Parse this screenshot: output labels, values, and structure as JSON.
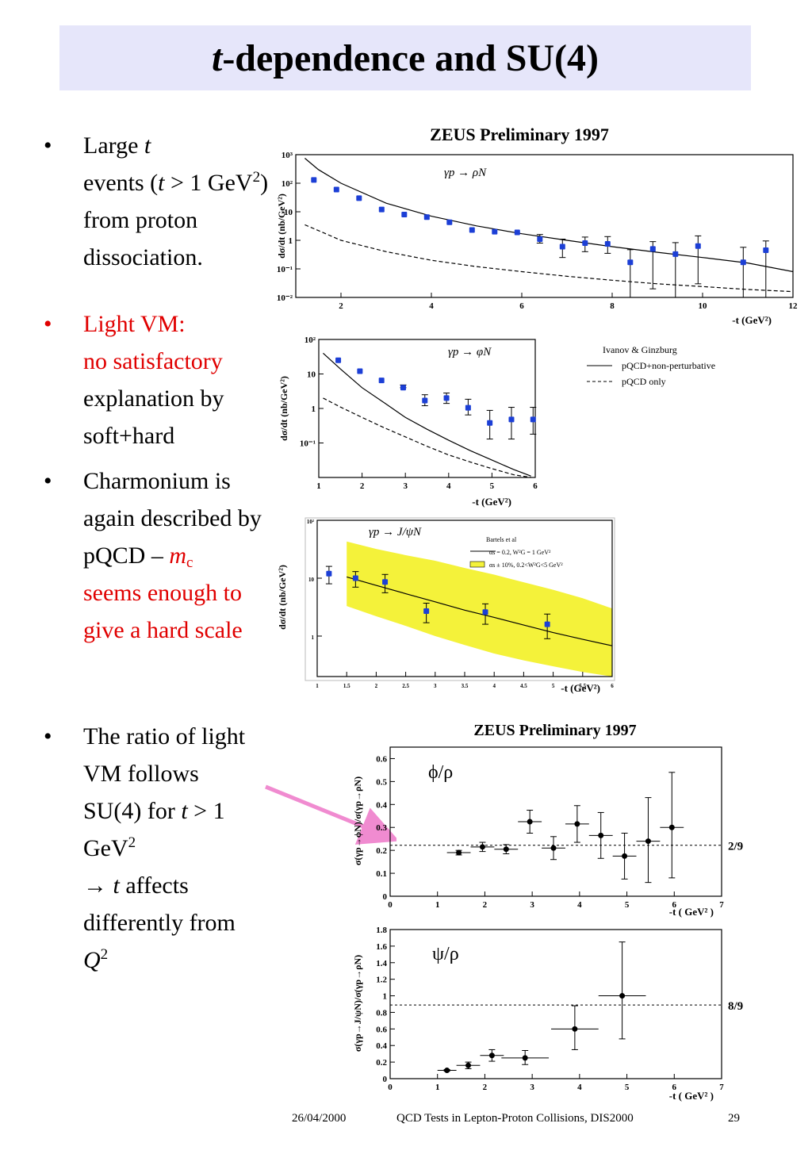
{
  "slide": {
    "title_italic": "t",
    "title_rest": "-dependence and SU(4)",
    "bullets": [
      {
        "dot": "•",
        "parts": [
          "Large ",
          "t",
          " events (",
          "t",
          " > 1 GeV",
          "2",
          ") from proton dissociation."
        ]
      },
      {
        "dot": "•",
        "parts": [
          "Light VM:",
          "no satisfactory",
          "explanation by soft+hard"
        ]
      },
      {
        "dot": "•",
        "parts": [
          "Charmonium is again described by pQCD – ",
          "m",
          "c",
          "seems enough to give a hard scale"
        ]
      },
      {
        "dot": "•",
        "parts": [
          "The ratio of light VM follows SU(4) for ",
          "t",
          " > 1 GeV",
          "2",
          "→ ",
          "t",
          " affects differently from ",
          "Q",
          "2"
        ]
      }
    ],
    "footer": {
      "date": "26/04/2000",
      "conference": "QCD Tests in Lepton-Proton Collisions, DIS2000",
      "page": "29"
    },
    "colors": {
      "title_bg": "#e6e6fa",
      "highlight_red": "#e00000",
      "data_blue": "#1c3fd6",
      "band_yellow": "#f4f23a",
      "arrow_pink": "#f08bd0"
    }
  },
  "chart_data": [
    {
      "id": "rho",
      "type": "scatter",
      "title": "ZEUS Preliminary 1997",
      "process": "γp → ρN",
      "xlabel": "-t (GeV²)",
      "ylabel": "dσ/dt (nb/GeV²)",
      "xlim": [
        1,
        12
      ],
      "ylim": [
        0.01,
        1000
      ],
      "yscale": "log",
      "xticks": [
        "2",
        "4",
        "6",
        "8",
        "10",
        "12"
      ],
      "yticks": [
        "10⁻²",
        "10⁻¹",
        "1",
        "10",
        "10²",
        "10³"
      ],
      "x": [
        1.4,
        1.9,
        2.4,
        2.9,
        3.4,
        3.9,
        4.4,
        4.9,
        5.4,
        5.9,
        6.4,
        6.9,
        7.4,
        7.9,
        8.4,
        8.9,
        9.4,
        9.9,
        10.9,
        11.4
      ],
      "y": [
        130,
        60,
        30,
        12,
        8,
        6.5,
        4.3,
        2.3,
        2.0,
        1.9,
        1.1,
        0.6,
        0.8,
        0.75,
        0.17,
        0.5,
        0.33,
        0.63,
        0.17,
        0.45
      ],
      "err_lo": [
        0,
        0,
        0,
        0,
        0,
        0,
        0,
        0,
        0,
        0,
        0.3,
        0.35,
        0.4,
        0.4,
        0.16,
        0.48,
        0.32,
        0.6,
        0.16,
        0.44
      ],
      "err_hi": [
        0,
        0,
        0,
        0,
        0,
        0,
        0,
        0,
        0,
        0,
        0.5,
        0.5,
        0.5,
        0.6,
        0.3,
        0.4,
        0.5,
        0.8,
        0.4,
        0.5
      ],
      "curves": [
        {
          "name": "pQCD+non-perturbative",
          "style": "solid",
          "x": [
            1.2,
            1.5,
            2,
            3,
            4,
            5,
            6,
            7,
            8,
            9,
            10,
            11,
            12
          ],
          "y": [
            750,
            300,
            100,
            20,
            7,
            3.2,
            1.7,
            1.0,
            0.6,
            0.38,
            0.25,
            0.16,
            0.08
          ]
        },
        {
          "name": "pQCD only",
          "style": "dashed",
          "x": [
            1.2,
            1.5,
            2,
            3,
            4,
            5,
            6,
            7,
            8,
            9,
            10,
            11,
            12
          ],
          "y": [
            3.5,
            2.2,
            1.0,
            0.4,
            0.2,
            0.12,
            0.08,
            0.055,
            0.04,
            0.03,
            0.024,
            0.019,
            0.016
          ]
        }
      ]
    },
    {
      "id": "phi",
      "type": "scatter",
      "process": "γp → φN",
      "xlabel": "-t (GeV²)",
      "ylabel": "dσ/dt (nb/GeV²)",
      "xlim": [
        1,
        6
      ],
      "ylim": [
        0.01,
        100
      ],
      "yscale": "log",
      "xticks": [
        "1",
        "2",
        "3",
        "4",
        "5",
        "6"
      ],
      "yticks": [
        "10⁻¹",
        "1",
        "10",
        "10²"
      ],
      "x": [
        1.45,
        1.95,
        2.45,
        2.95,
        3.45,
        3.95,
        4.45,
        4.95,
        5.45,
        5.95
      ],
      "y": [
        25,
        12,
        6.5,
        4.0,
        1.7,
        2.0,
        1.05,
        0.38,
        0.48,
        0.48
      ],
      "err_lo": [
        0,
        0,
        0,
        0,
        0.5,
        0.6,
        0.4,
        0.25,
        0.35,
        0.3
      ],
      "err_hi": [
        0,
        0,
        0,
        0.8,
        0.8,
        0.8,
        0.8,
        0.5,
        0.6,
        0.6
      ],
      "legend_title": "Ivanov & Ginzburg",
      "curves": [
        {
          "name": "pQCD+non-perturbative",
          "style": "solid",
          "x": [
            1.1,
            1.5,
            2,
            2.5,
            3,
            3.5,
            4,
            4.5,
            5,
            5.5,
            5.9
          ],
          "y": [
            40,
            14,
            4.0,
            1.5,
            0.55,
            0.25,
            0.12,
            0.06,
            0.032,
            0.017,
            0.011
          ]
        },
        {
          "name": "pQCD only",
          "style": "dashed",
          "x": [
            1.1,
            1.5,
            2,
            2.5,
            3,
            3.5,
            4,
            4.5,
            5,
            5.5,
            5.9
          ],
          "y": [
            2.0,
            1.1,
            0.55,
            0.28,
            0.15,
            0.08,
            0.045,
            0.028,
            0.018,
            0.012,
            0.009
          ]
        }
      ]
    },
    {
      "id": "jpsi",
      "type": "scatter",
      "process": "γp → J/ψN",
      "xlabel": "-t (GeV²)",
      "ylabel": "dσ/dt (nb/GeV²)",
      "xlim": [
        1,
        6
      ],
      "ylim": [
        0.2,
        100
      ],
      "yscale": "log",
      "xticks": [
        "1",
        "1.5",
        "2",
        "2.5",
        "3",
        "3.5",
        "4",
        "4.5",
        "5",
        "5.5",
        "6"
      ],
      "yticks": [
        "1",
        "10",
        "10²"
      ],
      "x": [
        1.2,
        1.65,
        2.15,
        2.85,
        3.85,
        4.9
      ],
      "y": [
        12,
        10,
        8.6,
        2.7,
        2.6,
        1.6
      ],
      "err_lo": [
        4,
        3,
        3,
        1.0,
        1.0,
        0.7
      ],
      "err_hi": [
        4,
        3,
        3,
        1.0,
        1.0,
        0.8
      ],
      "legend_title": "Bartels et al",
      "curves": [
        {
          "name": "αs = 0.2, W²G = 1 GeV²",
          "style": "solid",
          "x": [
            1.5,
            2,
            2.5,
            3,
            3.5,
            4,
            4.5,
            5,
            5.5,
            6
          ],
          "y": [
            10.5,
            7.5,
            5.4,
            3.9,
            2.8,
            2.1,
            1.55,
            1.15,
            0.88,
            0.68
          ]
        },
        {
          "name": "αs ± 10%, 0.2<W²G<5 GeV²",
          "style": "band",
          "x": [
            1.5,
            2,
            2.5,
            3,
            3.5,
            4,
            4.5,
            5,
            5.5,
            6
          ],
          "y_lo": [
            3.3,
            2.2,
            1.5,
            1.0,
            0.7,
            0.5,
            0.38,
            0.3,
            0.24,
            0.2
          ],
          "y_hi": [
            43,
            32,
            25,
            20,
            15,
            11.5,
            8.5,
            6.3,
            4.5,
            3.0
          ]
        }
      ]
    },
    {
      "id": "phi_rho",
      "type": "scatter",
      "title": "ZEUS Preliminary 1997",
      "panel_label": "ϕ/ρ",
      "xlabel": "-t ( GeV² )",
      "ylabel": "σ(γp→ϕN)/σ(γp→ρN)",
      "xlim": [
        0,
        7
      ],
      "ylim": [
        0,
        0.65
      ],
      "xticks": [
        "0",
        "1",
        "2",
        "3",
        "4",
        "5",
        "6",
        "7"
      ],
      "yticks": [
        "0",
        "0.1",
        "0.2",
        "0.3",
        "0.4",
        "0.5",
        "0.6"
      ],
      "reference": {
        "label": "2/9",
        "y": 0.2222
      },
      "x": [
        1.45,
        1.95,
        2.45,
        2.95,
        3.45,
        3.95,
        4.45,
        4.95,
        5.45,
        5.95
      ],
      "y": [
        0.19,
        0.215,
        0.205,
        0.325,
        0.21,
        0.315,
        0.265,
        0.175,
        0.24,
        0.3
      ],
      "err_lo": [
        0.01,
        0.02,
        0.02,
        0.05,
        0.05,
        0.08,
        0.1,
        0.1,
        0.18,
        0.22
      ],
      "err_hi": [
        0.01,
        0.02,
        0.02,
        0.05,
        0.05,
        0.08,
        0.1,
        0.1,
        0.19,
        0.24
      ],
      "xerr": 0.25
    },
    {
      "id": "psi_rho",
      "type": "scatter",
      "panel_label": "ψ/ρ",
      "xlabel": "-t ( GeV² )",
      "ylabel": "σ(γp→J/ψN)/σ(γp→ρN)",
      "xlim": [
        0,
        7
      ],
      "ylim": [
        0,
        1.8
      ],
      "xticks": [
        "0",
        "1",
        "2",
        "3",
        "4",
        "5",
        "6",
        "7"
      ],
      "yticks": [
        "0",
        "0.2",
        "0.4",
        "0.6",
        "0.8",
        "1",
        "1.2",
        "1.4",
        "1.6",
        "1.8"
      ],
      "reference": {
        "label": "8/9",
        "y": 0.8889
      },
      "x": [
        1.2,
        1.65,
        2.15,
        2.85,
        3.9,
        4.9
      ],
      "y": [
        0.1,
        0.16,
        0.28,
        0.25,
        0.6,
        1.0
      ],
      "err_lo": [
        0.01,
        0.04,
        0.07,
        0.08,
        0.25,
        0.52
      ],
      "err_hi": [
        0.01,
        0.04,
        0.07,
        0.09,
        0.28,
        0.65
      ],
      "xerr_list": [
        0.2,
        0.25,
        0.25,
        0.5,
        0.5,
        0.5
      ]
    }
  ]
}
